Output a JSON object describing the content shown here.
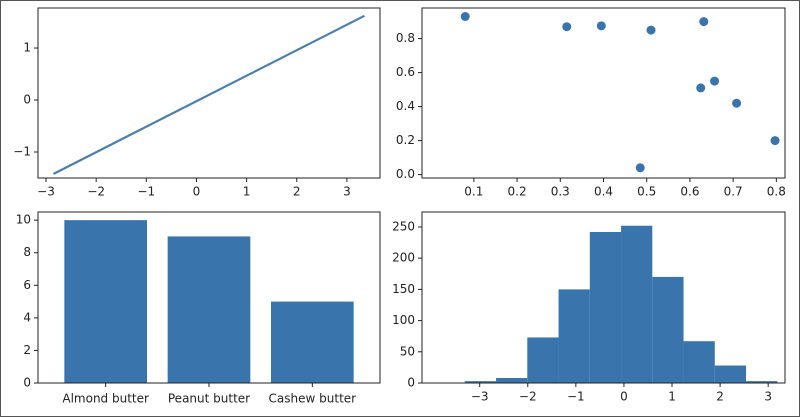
{
  "chart_data": [
    {
      "type": "line",
      "color": "#4a7eae",
      "x": [
        -2.85,
        3.35
      ],
      "values": [
        -1.42,
        1.62
      ],
      "xlim": [
        -3.16,
        3.66
      ],
      "ylim": [
        -1.5,
        1.77
      ],
      "xticks": [
        {
          "value": -3,
          "label": "−3"
        },
        {
          "value": -2,
          "label": "−2"
        },
        {
          "value": -1,
          "label": "−1"
        },
        0,
        1,
        2,
        3
      ],
      "yticks": [
        {
          "value": -1,
          "label": "−1"
        },
        0,
        1
      ]
    },
    {
      "type": "scatter",
      "color": "#3a74ad",
      "x": [
        0.08,
        0.315,
        0.395,
        0.485,
        0.51,
        0.625,
        0.632,
        0.657,
        0.708,
        0.797
      ],
      "values": [
        0.93,
        0.87,
        0.875,
        0.04,
        0.85,
        0.51,
        0.9,
        0.55,
        0.42,
        0.2
      ],
      "xlim": [
        -0.02,
        0.82
      ],
      "ylim": [
        -0.02,
        0.98
      ],
      "xticks": [
        0.1,
        0.2,
        0.3,
        0.4,
        0.5,
        0.6,
        0.7,
        0.8
      ],
      "yticks": [
        {
          "value": 0,
          "label": "0.0"
        },
        0.2,
        0.4,
        0.6,
        0.8
      ]
    },
    {
      "type": "bar",
      "color": "#3a74ad",
      "categories": [
        "Almond butter",
        "Peanut butter",
        "Cashew butter"
      ],
      "values": [
        10,
        9,
        5
      ],
      "ylim": [
        0,
        10.5
      ],
      "yticks": [
        0,
        2,
        4,
        6,
        8,
        10
      ]
    },
    {
      "type": "histogram",
      "color": "#3a74ad",
      "bins": [
        -3.31,
        -2.66,
        -2.01,
        -1.36,
        -0.71,
        -0.06,
        0.59,
        1.24,
        1.89,
        2.54,
        3.19
      ],
      "values": [
        3,
        8,
        73,
        150,
        242,
        252,
        170,
        67,
        28,
        3
      ],
      "xlim": [
        -4.2,
        3.35
      ],
      "ylim": [
        0,
        274
      ],
      "xticks": [
        {
          "value": -3,
          "label": "−3"
        },
        {
          "value": -2,
          "label": "−2"
        },
        {
          "value": -1,
          "label": "−1"
        },
        0,
        1,
        2,
        3
      ],
      "yticks": [
        0,
        50,
        100,
        150,
        200,
        250
      ]
    }
  ]
}
